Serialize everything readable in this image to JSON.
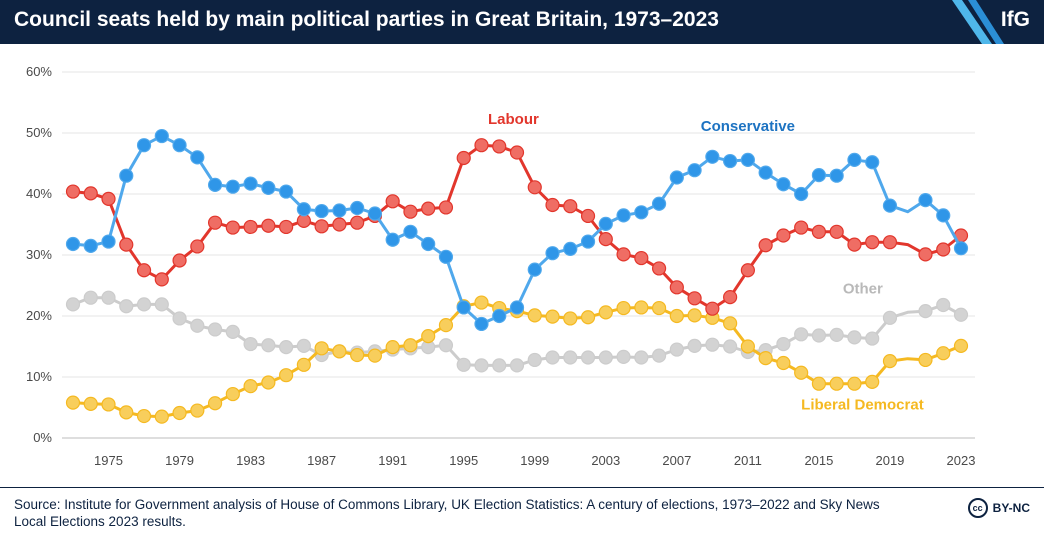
{
  "header": {
    "title": "Council seats held by main political parties in Great Britain, 1973–2023",
    "logo": "IfG",
    "colors": {
      "background": "#0d2240",
      "accent": "#4fb7ea"
    }
  },
  "footer": {
    "source": "Source: Institute for Government analysis of House of Commons Library, UK Election Statistics: A century of elections, 1973–2022 and Sky News Local Elections 2023 results.",
    "license": "BY-NC",
    "license_icon": "cc-icon"
  },
  "chart_data": {
    "type": "line",
    "title": "Council seats held by main political parties in Great Britain, 1973–2023",
    "xlabel": "",
    "ylabel": "",
    "x": [
      1973,
      1974,
      1975,
      1976,
      1977,
      1978,
      1979,
      1980,
      1981,
      1982,
      1983,
      1984,
      1985,
      1986,
      1987,
      1988,
      1989,
      1990,
      1991,
      1992,
      1993,
      1994,
      1995,
      1996,
      1997,
      1998,
      1999,
      2000,
      2001,
      2002,
      2003,
      2004,
      2005,
      2006,
      2007,
      2008,
      2009,
      2010,
      2011,
      2012,
      2013,
      2014,
      2015,
      2016,
      2017,
      2018,
      2019,
      2020,
      2021,
      2022,
      2023
    ],
    "xticks": [
      1975,
      1979,
      1983,
      1987,
      1991,
      1995,
      1999,
      2003,
      2007,
      2011,
      2015,
      2019,
      2023
    ],
    "xlim": [
      1973,
      2023
    ],
    "ylim": [
      0,
      60
    ],
    "yticks": [
      0,
      10,
      20,
      30,
      40,
      50,
      60
    ],
    "ytick_labels": [
      "0%",
      "10%",
      "20%",
      "30%",
      "40%",
      "50%",
      "60%"
    ],
    "grid": true,
    "legend": "direct labels",
    "series": [
      {
        "name": "Conservative",
        "color": "#2f96e8",
        "line_color": "#4fa8ec",
        "values": [
          31.8,
          31.5,
          32.2,
          43,
          48,
          49.5,
          48,
          46,
          41.5,
          41.2,
          41.7,
          41,
          40.4,
          37.5,
          37.2,
          37.3,
          37.7,
          36.8,
          32.5,
          33.8,
          31.8,
          29.7,
          21.4,
          18.7,
          20,
          21.4,
          27.6,
          30.3,
          31,
          32.2,
          35.1,
          36.5,
          37,
          38.4,
          42.7,
          43.9,
          46.1,
          45.4,
          45.6,
          43.5,
          41.6,
          40,
          43.1,
          43,
          45.6,
          45.2,
          38.1,
          37.1,
          39,
          36.5,
          31.1
        ],
        "present": [
          true,
          true,
          true,
          true,
          true,
          true,
          true,
          true,
          true,
          true,
          true,
          true,
          true,
          true,
          true,
          true,
          true,
          true,
          true,
          true,
          true,
          true,
          true,
          true,
          true,
          true,
          true,
          true,
          true,
          true,
          true,
          true,
          true,
          true,
          true,
          true,
          true,
          true,
          true,
          true,
          true,
          true,
          true,
          true,
          true,
          true,
          true,
          false,
          true,
          true,
          true
        ]
      },
      {
        "name": "Labour",
        "color": "#ef6d64",
        "line_color": "#e2362c",
        "values": [
          40.4,
          40.1,
          39.2,
          31.7,
          27.5,
          26,
          29.1,
          31.4,
          35.3,
          34.5,
          34.6,
          34.8,
          34.6,
          35.6,
          34.7,
          35,
          35.3,
          36.4,
          38.8,
          37.1,
          37.6,
          37.8,
          45.9,
          48,
          47.8,
          46.8,
          41.1,
          38.2,
          38,
          36.4,
          32.6,
          30.1,
          29.5,
          27.8,
          24.7,
          22.9,
          21.2,
          23.1,
          27.5,
          31.6,
          33.2,
          34.5,
          33.8,
          33.8,
          31.7,
          32.1,
          32.1,
          31.7,
          30.1,
          30.9,
          33.2
        ],
        "present": [
          true,
          true,
          true,
          true,
          true,
          true,
          true,
          true,
          true,
          true,
          true,
          true,
          true,
          true,
          true,
          true,
          true,
          true,
          true,
          true,
          true,
          true,
          true,
          true,
          true,
          true,
          true,
          true,
          true,
          true,
          true,
          true,
          true,
          true,
          true,
          true,
          true,
          true,
          true,
          true,
          true,
          true,
          true,
          true,
          true,
          true,
          true,
          false,
          true,
          true,
          true
        ]
      },
      {
        "name": "Liberal Democrat",
        "color": "#f8ce5c",
        "line_color": "#f5b921",
        "values": [
          5.8,
          5.6,
          5.5,
          4.2,
          3.6,
          3.5,
          4.1,
          4.5,
          5.7,
          7.2,
          8.5,
          9.1,
          10.3,
          12,
          14.7,
          14.2,
          13.6,
          13.5,
          14.9,
          15.2,
          16.7,
          18.5,
          21.6,
          22.2,
          21.3,
          20.8,
          20.1,
          19.9,
          19.6,
          19.8,
          20.6,
          21.3,
          21.4,
          21.3,
          20,
          20.1,
          19.7,
          18.8,
          15,
          13.1,
          12.3,
          10.7,
          8.9,
          8.9,
          8.9,
          9.2,
          12.6,
          13,
          12.8,
          13.9,
          15.1
        ],
        "present": [
          true,
          true,
          true,
          true,
          true,
          true,
          true,
          true,
          true,
          true,
          true,
          true,
          true,
          true,
          true,
          true,
          true,
          true,
          true,
          true,
          true,
          true,
          true,
          true,
          true,
          true,
          true,
          true,
          true,
          true,
          true,
          true,
          true,
          true,
          true,
          true,
          true,
          true,
          true,
          true,
          true,
          true,
          true,
          true,
          true,
          true,
          true,
          false,
          true,
          true,
          true
        ]
      },
      {
        "name": "Other",
        "color": "#d3d3d3",
        "line_color": "#cccccc",
        "values": [
          21.9,
          23,
          23,
          21.6,
          21.9,
          21.9,
          19.6,
          18.4,
          17.8,
          17.4,
          15.4,
          15.2,
          14.9,
          15.1,
          13.6,
          14.2,
          14,
          14.2,
          14.5,
          14.7,
          14.9,
          15.2,
          12,
          11.9,
          11.9,
          11.9,
          12.8,
          13.2,
          13.2,
          13.2,
          13.2,
          13.3,
          13.2,
          13.5,
          14.5,
          15.1,
          15.3,
          15,
          14.1,
          14.4,
          15.4,
          17,
          16.8,
          16.9,
          16.5,
          16.3,
          19.7,
          20.6,
          20.8,
          21.8,
          20.2
        ],
        "present": [
          true,
          true,
          true,
          true,
          true,
          true,
          true,
          true,
          true,
          true,
          true,
          true,
          true,
          true,
          true,
          true,
          true,
          true,
          true,
          true,
          true,
          true,
          true,
          true,
          true,
          true,
          true,
          true,
          true,
          true,
          true,
          true,
          true,
          true,
          true,
          true,
          true,
          true,
          true,
          true,
          true,
          true,
          true,
          true,
          true,
          true,
          true,
          false,
          true,
          true,
          true
        ]
      }
    ],
    "annotations": [
      {
        "text": "Labour",
        "color": "#e2362c"
      },
      {
        "text": "Conservative",
        "color": "#1d73c2"
      },
      {
        "text": "Other",
        "color": "#b9b9b9"
      },
      {
        "text": "Liberal Democrat",
        "color": "#f5b921"
      }
    ]
  }
}
